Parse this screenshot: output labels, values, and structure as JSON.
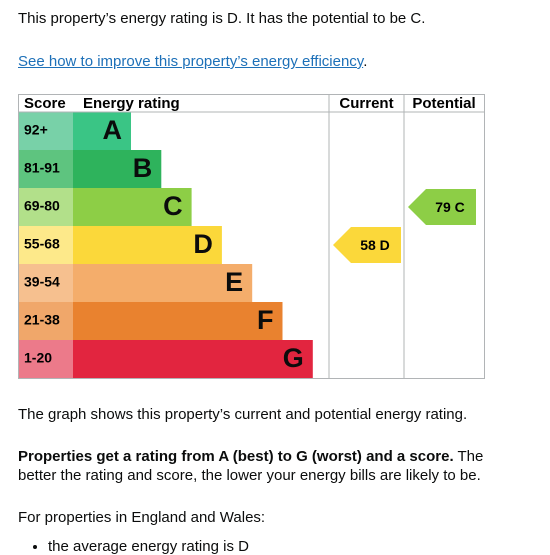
{
  "intro": "This property’s energy rating is D. It has the potential to be C.",
  "link": {
    "text": "See how to improve this property’s energy efficiency",
    "end": "."
  },
  "graph": {
    "headers": [
      "Score",
      "Energy rating",
      "Current",
      "Potential"
    ],
    "bands": [
      {
        "score": "92+",
        "rating": "A",
        "color": "#3ac585",
        "score_color": "#78d1a8"
      },
      {
        "score": "81-91",
        "rating": "B",
        "color": "#2eb35c",
        "score_color": "#5ec47f"
      },
      {
        "score": "69-80",
        "rating": "C",
        "color": "#8dce46",
        "score_color": "#b2e08a"
      },
      {
        "score": "55-68",
        "rating": "D",
        "color": "#fbd83a",
        "score_color": "#fde98a"
      },
      {
        "score": "39-54",
        "rating": "E",
        "color": "#f4ad6b",
        "score_color": "#f6c08f"
      },
      {
        "score": "21-38",
        "rating": "F",
        "color": "#e9822f",
        "score_color": "#f0a76a"
      },
      {
        "score": "1-20",
        "rating": "G",
        "color": "#e2253f",
        "score_color": "#ec7a8a"
      }
    ],
    "current": {
      "score": 58,
      "band": "D"
    },
    "potential": {
      "score": 79,
      "band": "C"
    }
  },
  "paragraphs": {
    "caption": "The graph shows this property’s current and potential energy rating.",
    "rating_bold": "Properties get a rating from A (best) to G (worst) and a score.",
    "rating_rest": " The better the rating and score, the lower your energy bills are likely to be.",
    "region": "For properties in England and Wales:",
    "bullet": "the average energy rating is D"
  }
}
